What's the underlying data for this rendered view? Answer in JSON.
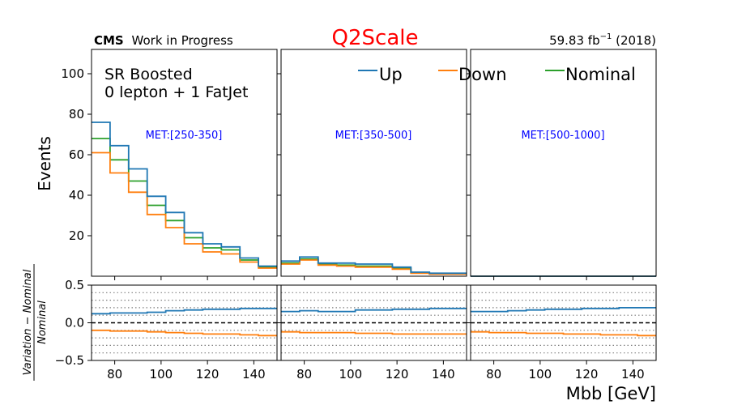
{
  "header": {
    "experiment": "CMS",
    "status": "Work in Progress",
    "title": "Q2Scale",
    "title_color": "#ff0000",
    "lumi_value": "59.83 fb",
    "lumi_exponent": "−1",
    "lumi_year": " (2018)"
  },
  "region": {
    "line1": "SR Boosted",
    "line2": "0 lepton + 1 FatJet"
  },
  "legend": {
    "up": "Up",
    "down": "Down",
    "nominal": "Nominal"
  },
  "colors": {
    "up": "#1f77b4",
    "down": "#ff7f0e",
    "nominal": "#2ca02c",
    "met_label": "#0000ff"
  },
  "chart_data": {
    "type": "line",
    "drawstyle": "steps",
    "xlabel": "Mbb [GeV]",
    "ylabel": "Events",
    "ratio_ylabel_numerator": "Variation − Nominal",
    "ratio_ylabel_denominator": "Nominal",
    "xlim": [
      70,
      150
    ],
    "ylim": [
      0,
      112
    ],
    "ratio_ylim": [
      -0.5,
      0.5
    ],
    "x_ticks": [
      80,
      100,
      120,
      140
    ],
    "y_ticks": [
      20,
      40,
      60,
      80,
      100
    ],
    "ratio_ticks": [
      "0.5",
      "0.0",
      "−0.5"
    ],
    "ratio_tick_values": [
      0.5,
      0.0,
      -0.5
    ],
    "ratio_dotted_lines": [
      -0.4,
      -0.3,
      -0.2,
      -0.1,
      0.1,
      0.2,
      0.3,
      0.4
    ],
    "ratio_reference_line": 0.0,
    "bin_edges": [
      70,
      78,
      86,
      94,
      102,
      110,
      118,
      126,
      134,
      142,
      150
    ],
    "panels": [
      {
        "label": "MET:[250-350]",
        "series": [
          {
            "name": "Up",
            "key": "up",
            "values": [
              76,
              64.5,
              53,
              39.5,
              31.5,
              21.5,
              16,
              14.5,
              9,
              5
            ]
          },
          {
            "name": "Down",
            "key": "down",
            "values": [
              61,
              51,
              41.5,
              30.5,
              24,
              16,
              12,
              11,
              7,
              4
            ]
          },
          {
            "name": "Nominal",
            "key": "nominal",
            "values": [
              68,
              57.5,
              47,
              35,
              27.5,
              19,
              14,
              13,
              8,
              4.5
            ]
          }
        ],
        "ratio_series": [
          {
            "name": "Up",
            "key": "up",
            "values": [
              0.12,
              0.13,
              0.13,
              0.14,
              0.16,
              0.17,
              0.18,
              0.18,
              0.19,
              0.19
            ]
          },
          {
            "name": "Down",
            "key": "down",
            "values": [
              -0.1,
              -0.11,
              -0.11,
              -0.12,
              -0.13,
              -0.14,
              -0.15,
              -0.15,
              -0.16,
              -0.17
            ]
          }
        ]
      },
      {
        "label": "MET:[350-500]",
        "series": [
          {
            "name": "Up",
            "key": "up",
            "values": [
              7.5,
              9.5,
              6.5,
              6.5,
              6,
              6,
              4.5,
              2,
              1.5,
              1.5
            ]
          },
          {
            "name": "Down",
            "key": "down",
            "values": [
              6,
              8,
              5.5,
              5,
              4.5,
              4.5,
              3.5,
              1.5,
              1,
              1
            ]
          },
          {
            "name": "Nominal",
            "key": "nominal",
            "values": [
              6.5,
              8.5,
              6,
              5.5,
              5,
              5,
              4,
              1.7,
              1.2,
              1.2
            ]
          }
        ],
        "ratio_series": [
          {
            "name": "Up",
            "key": "up",
            "values": [
              0.15,
              0.16,
              0.15,
              0.15,
              0.17,
              0.17,
              0.18,
              0.18,
              0.19,
              0.19
            ]
          },
          {
            "name": "Down",
            "key": "down",
            "values": [
              -0.12,
              -0.13,
              -0.13,
              -0.13,
              -0.14,
              -0.14,
              -0.15,
              -0.15,
              -0.15,
              -0.15
            ]
          }
        ]
      },
      {
        "label": "MET:[500-1000]",
        "series": [
          {
            "name": "Up",
            "key": "up",
            "values": [
              0,
              0,
              0,
              0,
              0,
              0,
              0,
              0,
              0,
              0
            ]
          },
          {
            "name": "Down",
            "key": "down",
            "values": [
              0,
              0,
              0,
              0,
              0,
              0,
              0,
              0,
              0,
              0
            ]
          },
          {
            "name": "Nominal",
            "key": "nominal",
            "values": [
              0,
              0,
              0,
              0,
              0,
              0,
              0,
              0,
              0,
              0
            ]
          }
        ],
        "ratio_series": [
          {
            "name": "Up",
            "key": "up",
            "values": [
              0.15,
              0.15,
              0.16,
              0.17,
              0.18,
              0.18,
              0.19,
              0.19,
              0.2,
              0.2
            ]
          },
          {
            "name": "Down",
            "key": "down",
            "values": [
              -0.12,
              -0.13,
              -0.13,
              -0.14,
              -0.14,
              -0.15,
              -0.15,
              -0.16,
              -0.16,
              -0.17
            ]
          }
        ]
      }
    ]
  }
}
